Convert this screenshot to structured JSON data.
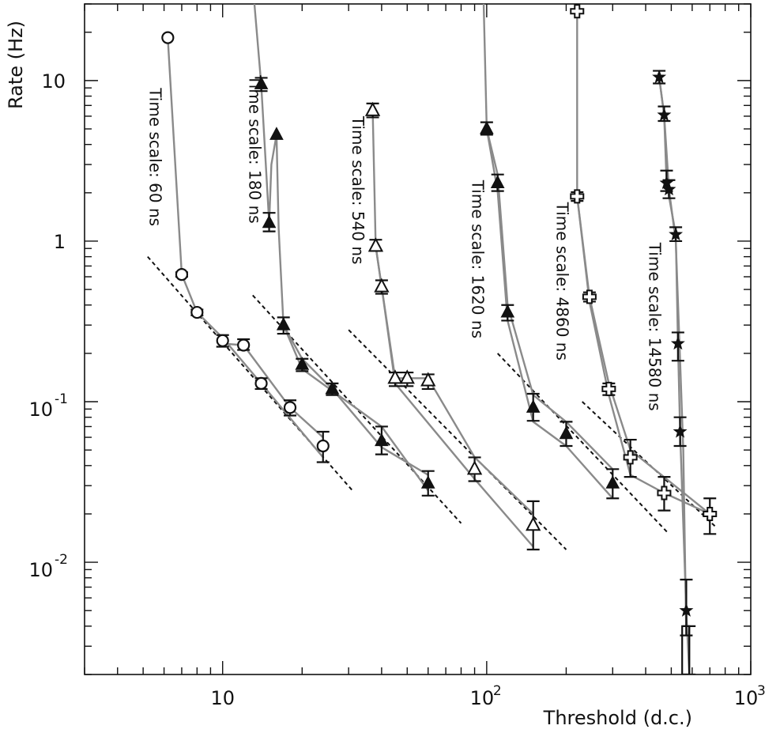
{
  "chart_data": {
    "type": "line",
    "title": "",
    "xlabel": "Threshold (d.c.)",
    "ylabel": "Rate (Hz)",
    "xscale": "log",
    "yscale": "log",
    "xlim": [
      3,
      1000
    ],
    "ylim": [
      0.002,
      30
    ],
    "x_ticks": [
      {
        "value": 10,
        "base": "10",
        "exp": ""
      },
      {
        "value": 100,
        "base": "10",
        "exp": "2"
      },
      {
        "value": 1000,
        "base": "10",
        "exp": "3"
      }
    ],
    "y_ticks": [
      {
        "value": 0.01,
        "base": "10",
        "exp": "-2"
      },
      {
        "value": 0.1,
        "base": "10",
        "exp": "-1"
      },
      {
        "value": 1,
        "base": "1",
        "exp": ""
      },
      {
        "value": 10,
        "base": "10",
        "exp": ""
      }
    ],
    "grid": false,
    "legend": "none",
    "colors": {
      "line": "#8a8a8a",
      "marker": "#111111",
      "fit": "#111111"
    },
    "series": [
      {
        "marker": "open-circle",
        "points": [
          {
            "x": 6.2,
            "y": 18.5
          },
          {
            "x": 7.0,
            "y": 0.62,
            "err": [
              0.6,
              0.64
            ]
          },
          {
            "x": 8.0,
            "y": 0.36,
            "err": [
              0.345,
              0.375
            ]
          },
          {
            "x": 10.0,
            "y": 0.24,
            "err": [
              0.22,
              0.26
            ]
          },
          {
            "x": 12.0,
            "y": 0.225,
            "err": [
              0.21,
              0.245
            ]
          },
          {
            "x": 14.0,
            "y": 0.13,
            "err": [
              0.12,
              0.14
            ]
          },
          {
            "x": 18.0,
            "y": 0.092,
            "err": [
              0.082,
              0.102
            ]
          },
          {
            "x": 24.0,
            "y": 0.053,
            "err": [
              0.042,
              0.065
            ]
          }
        ],
        "curves": [
          [
            [
              6.2,
              18.5
            ],
            [
              7.0,
              0.62
            ],
            [
              8.0,
              0.36
            ],
            [
              10.0,
              0.25
            ],
            [
              14.0,
              0.13
            ],
            [
              24.0,
              0.045
            ]
          ],
          [
            [
              10.0,
              0.23
            ],
            [
              12.0,
              0.225
            ],
            [
              18.0,
              0.092
            ],
            [
              24.0,
              0.06
            ]
          ]
        ],
        "fit": [
          [
            5.2,
            0.8
          ],
          [
            31,
            0.028
          ]
        ],
        "annotation": "Time scale: 60 ns",
        "annotation_pos": [
          5.3,
          9.0
        ]
      },
      {
        "marker": "filled-triangle",
        "points": [
          {
            "x": 14.0,
            "y": 9.5,
            "err": [
              8.6,
              10.4
            ]
          },
          {
            "x": 15.0,
            "y": 1.3,
            "err": [
              1.15,
              1.5
            ]
          },
          {
            "x": 16.0,
            "y": 4.6
          },
          {
            "x": 17.0,
            "y": 0.3,
            "err": [
              0.265,
              0.335
            ]
          },
          {
            "x": 20.0,
            "y": 0.17,
            "err": [
              0.155,
              0.185
            ]
          },
          {
            "x": 26.0,
            "y": 0.12,
            "err": [
              0.11,
              0.13
            ]
          },
          {
            "x": 40.0,
            "y": 0.057,
            "err": [
              0.047,
              0.07
            ]
          },
          {
            "x": 60.0,
            "y": 0.031,
            "err": [
              0.026,
              0.037
            ]
          }
        ],
        "curves": [
          [
            [
              13.0,
              40
            ],
            [
              14.0,
              9.5
            ],
            [
              15.0,
              1.3
            ],
            [
              15.3,
              3.0
            ],
            [
              16.0,
              4.6
            ],
            [
              16.3,
              1.2
            ],
            [
              17.0,
              0.3
            ],
            [
              20.0,
              0.16
            ],
            [
              40.0,
              0.07
            ],
            [
              60.0,
              0.028
            ]
          ],
          [
            [
              17.0,
              0.3
            ],
            [
              20.0,
              0.185
            ],
            [
              26.0,
              0.12
            ],
            [
              40.0,
              0.052
            ],
            [
              60.0,
              0.035
            ]
          ]
        ],
        "fit": [
          [
            13.0,
            0.46
          ],
          [
            80,
            0.0175
          ]
        ],
        "annotation": "Time scale: 180 ns",
        "annotation_pos": [
          12.6,
          10.8
        ]
      },
      {
        "marker": "open-triangle",
        "points": [
          {
            "x": 37.0,
            "y": 6.5,
            "err": [
              5.9,
              7.2
            ]
          },
          {
            "x": 38.0,
            "y": 0.93,
            "err": [
              0.87,
              1.02
            ]
          },
          {
            "x": 40.0,
            "y": 0.52,
            "err": [
              0.47,
              0.57
            ]
          },
          {
            "x": 45.0,
            "y": 0.14,
            "err": [
              0.125,
              0.152
            ]
          },
          {
            "x": 50.0,
            "y": 0.14,
            "err": [
              0.125,
              0.152
            ]
          },
          {
            "x": 60.0,
            "y": 0.135,
            "err": [
              0.12,
              0.148
            ]
          },
          {
            "x": 90.0,
            "y": 0.038,
            "err": [
              0.032,
              0.045
            ]
          },
          {
            "x": 150.0,
            "y": 0.017,
            "err": [
              0.012,
              0.024
            ]
          }
        ],
        "curves": [
          [
            [
              37.0,
              6.5
            ],
            [
              38.0,
              0.93
            ],
            [
              45.0,
              0.14
            ],
            [
              60.0,
              0.14
            ],
            [
              90.0,
              0.045
            ],
            [
              150.0,
              0.02
            ]
          ],
          [
            [
              38.0,
              0.93
            ],
            [
              40.0,
              0.52
            ],
            [
              45.0,
              0.13
            ],
            [
              90.0,
              0.033
            ],
            [
              150.0,
              0.0125
            ]
          ]
        ],
        "fit": [
          [
            30,
            0.28
          ],
          [
            200,
            0.012
          ]
        ],
        "annotation": "Time scale: 540 ns",
        "annotation_pos": [
          31,
          6.0
        ]
      },
      {
        "marker": "filled-triangle",
        "points": [
          {
            "x": 100.0,
            "y": 5.0,
            "err": [
              4.6,
              5.5
            ]
          },
          {
            "x": 110.0,
            "y": 2.3,
            "err": [
              2.05,
              2.6
            ]
          },
          {
            "x": 120.0,
            "y": 0.36,
            "err": [
              0.32,
              0.4
            ]
          },
          {
            "x": 150.0,
            "y": 0.092,
            "err": [
              0.076,
              0.112
            ]
          },
          {
            "x": 200.0,
            "y": 0.063,
            "err": [
              0.053,
              0.075
            ]
          },
          {
            "x": 300.0,
            "y": 0.031,
            "err": [
              0.025,
              0.038
            ]
          }
        ],
        "curves": [
          [
            [
              97.0,
              40
            ],
            [
              100.0,
              5.0
            ],
            [
              110.0,
              2.6
            ],
            [
              120.0,
              0.4
            ],
            [
              150.0,
              0.11
            ],
            [
              200.0,
              0.075
            ],
            [
              300.0,
              0.038
            ]
          ],
          [
            [
              100.0,
              5.0
            ],
            [
              110.0,
              2.05
            ],
            [
              120.0,
              0.32
            ],
            [
              150.0,
              0.075
            ],
            [
              200.0,
              0.053
            ],
            [
              300.0,
              0.025
            ]
          ]
        ],
        "fit": [
          [
            110,
            0.2
          ],
          [
            490,
            0.015
          ]
        ],
        "annotation": "Time scale: 1620 ns",
        "annotation_pos": [
          88,
          2.4
        ]
      },
      {
        "marker": "open-cross",
        "points": [
          {
            "x": 220.0,
            "y": 27.0
          },
          {
            "x": 220.0,
            "y": 1.9,
            "err": [
              1.78,
              2.02
            ]
          },
          {
            "x": 245.0,
            "y": 0.45,
            "err": [
              0.42,
              0.48
            ]
          },
          {
            "x": 290.0,
            "y": 0.12,
            "err": [
              0.11,
              0.13
            ]
          },
          {
            "x": 350.0,
            "y": 0.045,
            "err": [
              0.034,
              0.058
            ]
          },
          {
            "x": 470.0,
            "y": 0.027,
            "err": [
              0.021,
              0.034
            ]
          },
          {
            "x": 700.0,
            "y": 0.02,
            "err": [
              0.015,
              0.025
            ]
          }
        ],
        "curves": [
          [
            [
              220.0,
              27.0
            ],
            [
              220.0,
              1.9
            ],
            [
              245.0,
              0.45
            ],
            [
              290.0,
              0.13
            ],
            [
              350.0,
              0.05
            ],
            [
              700.0,
              0.02
            ]
          ],
          [
            [
              220.0,
              1.9
            ],
            [
              245.0,
              0.42
            ],
            [
              290.0,
              0.11
            ],
            [
              350.0,
              0.035
            ],
            [
              470.0,
              0.027
            ],
            [
              700.0,
              0.02
            ]
          ]
        ],
        "fit": [
          [
            230,
            0.1
          ],
          [
            740,
            0.0165
          ]
        ],
        "annotation": "Time scale: 4860 ns",
        "annotation_pos": [
          184,
          1.75
        ]
      },
      {
        "marker": "filled-star",
        "points": [
          {
            "x": 450.0,
            "y": 10.5,
            "err": [
              9.6,
              11.5
            ]
          },
          {
            "x": 470.0,
            "y": 6.1,
            "err": [
              5.6,
              6.9
            ]
          },
          {
            "x": 480.0,
            "y": 2.3,
            "err": [
              2.05,
              2.75
            ]
          },
          {
            "x": 490.0,
            "y": 2.1,
            "err": [
              1.85,
              2.4
            ]
          },
          {
            "x": 520.0,
            "y": 1.1,
            "err": [
              1.0,
              1.22
            ]
          },
          {
            "x": 530.0,
            "y": 0.23,
            "err": [
              0.18,
              0.27
            ]
          },
          {
            "x": 540.0,
            "y": 0.065,
            "err": [
              0.053,
              0.08
            ]
          },
          {
            "x": 570.0,
            "y": 0.005,
            "err": [
              0.0035,
              0.0078
            ]
          },
          {
            "x": 585.0,
            "y": 0.003,
            "err": [
              0.002,
              0.004
            ]
          }
        ],
        "curves": [
          [
            [
              450.0,
              10.5
            ],
            [
              470.0,
              6.1
            ],
            [
              480.0,
              2.3
            ],
            [
              520.0,
              1.1
            ],
            [
              530.0,
              0.23
            ],
            [
              540.0,
              0.065
            ],
            [
              570.0,
              0.005
            ],
            [
              585.0,
              0.002
            ]
          ],
          [
            [
              450.0,
              10.5
            ],
            [
              470.0,
              6.1
            ],
            [
              490.0,
              2.1
            ],
            [
              520.0,
              1.0
            ],
            [
              540.0,
              0.18
            ],
            [
              555.0,
              0.05
            ],
            [
              570.0,
              0.0035
            ]
          ]
        ],
        "annotation": "Time scale: 14580 ns",
        "annotation_pos": [
          412,
          0.98
        ]
      }
    ]
  }
}
